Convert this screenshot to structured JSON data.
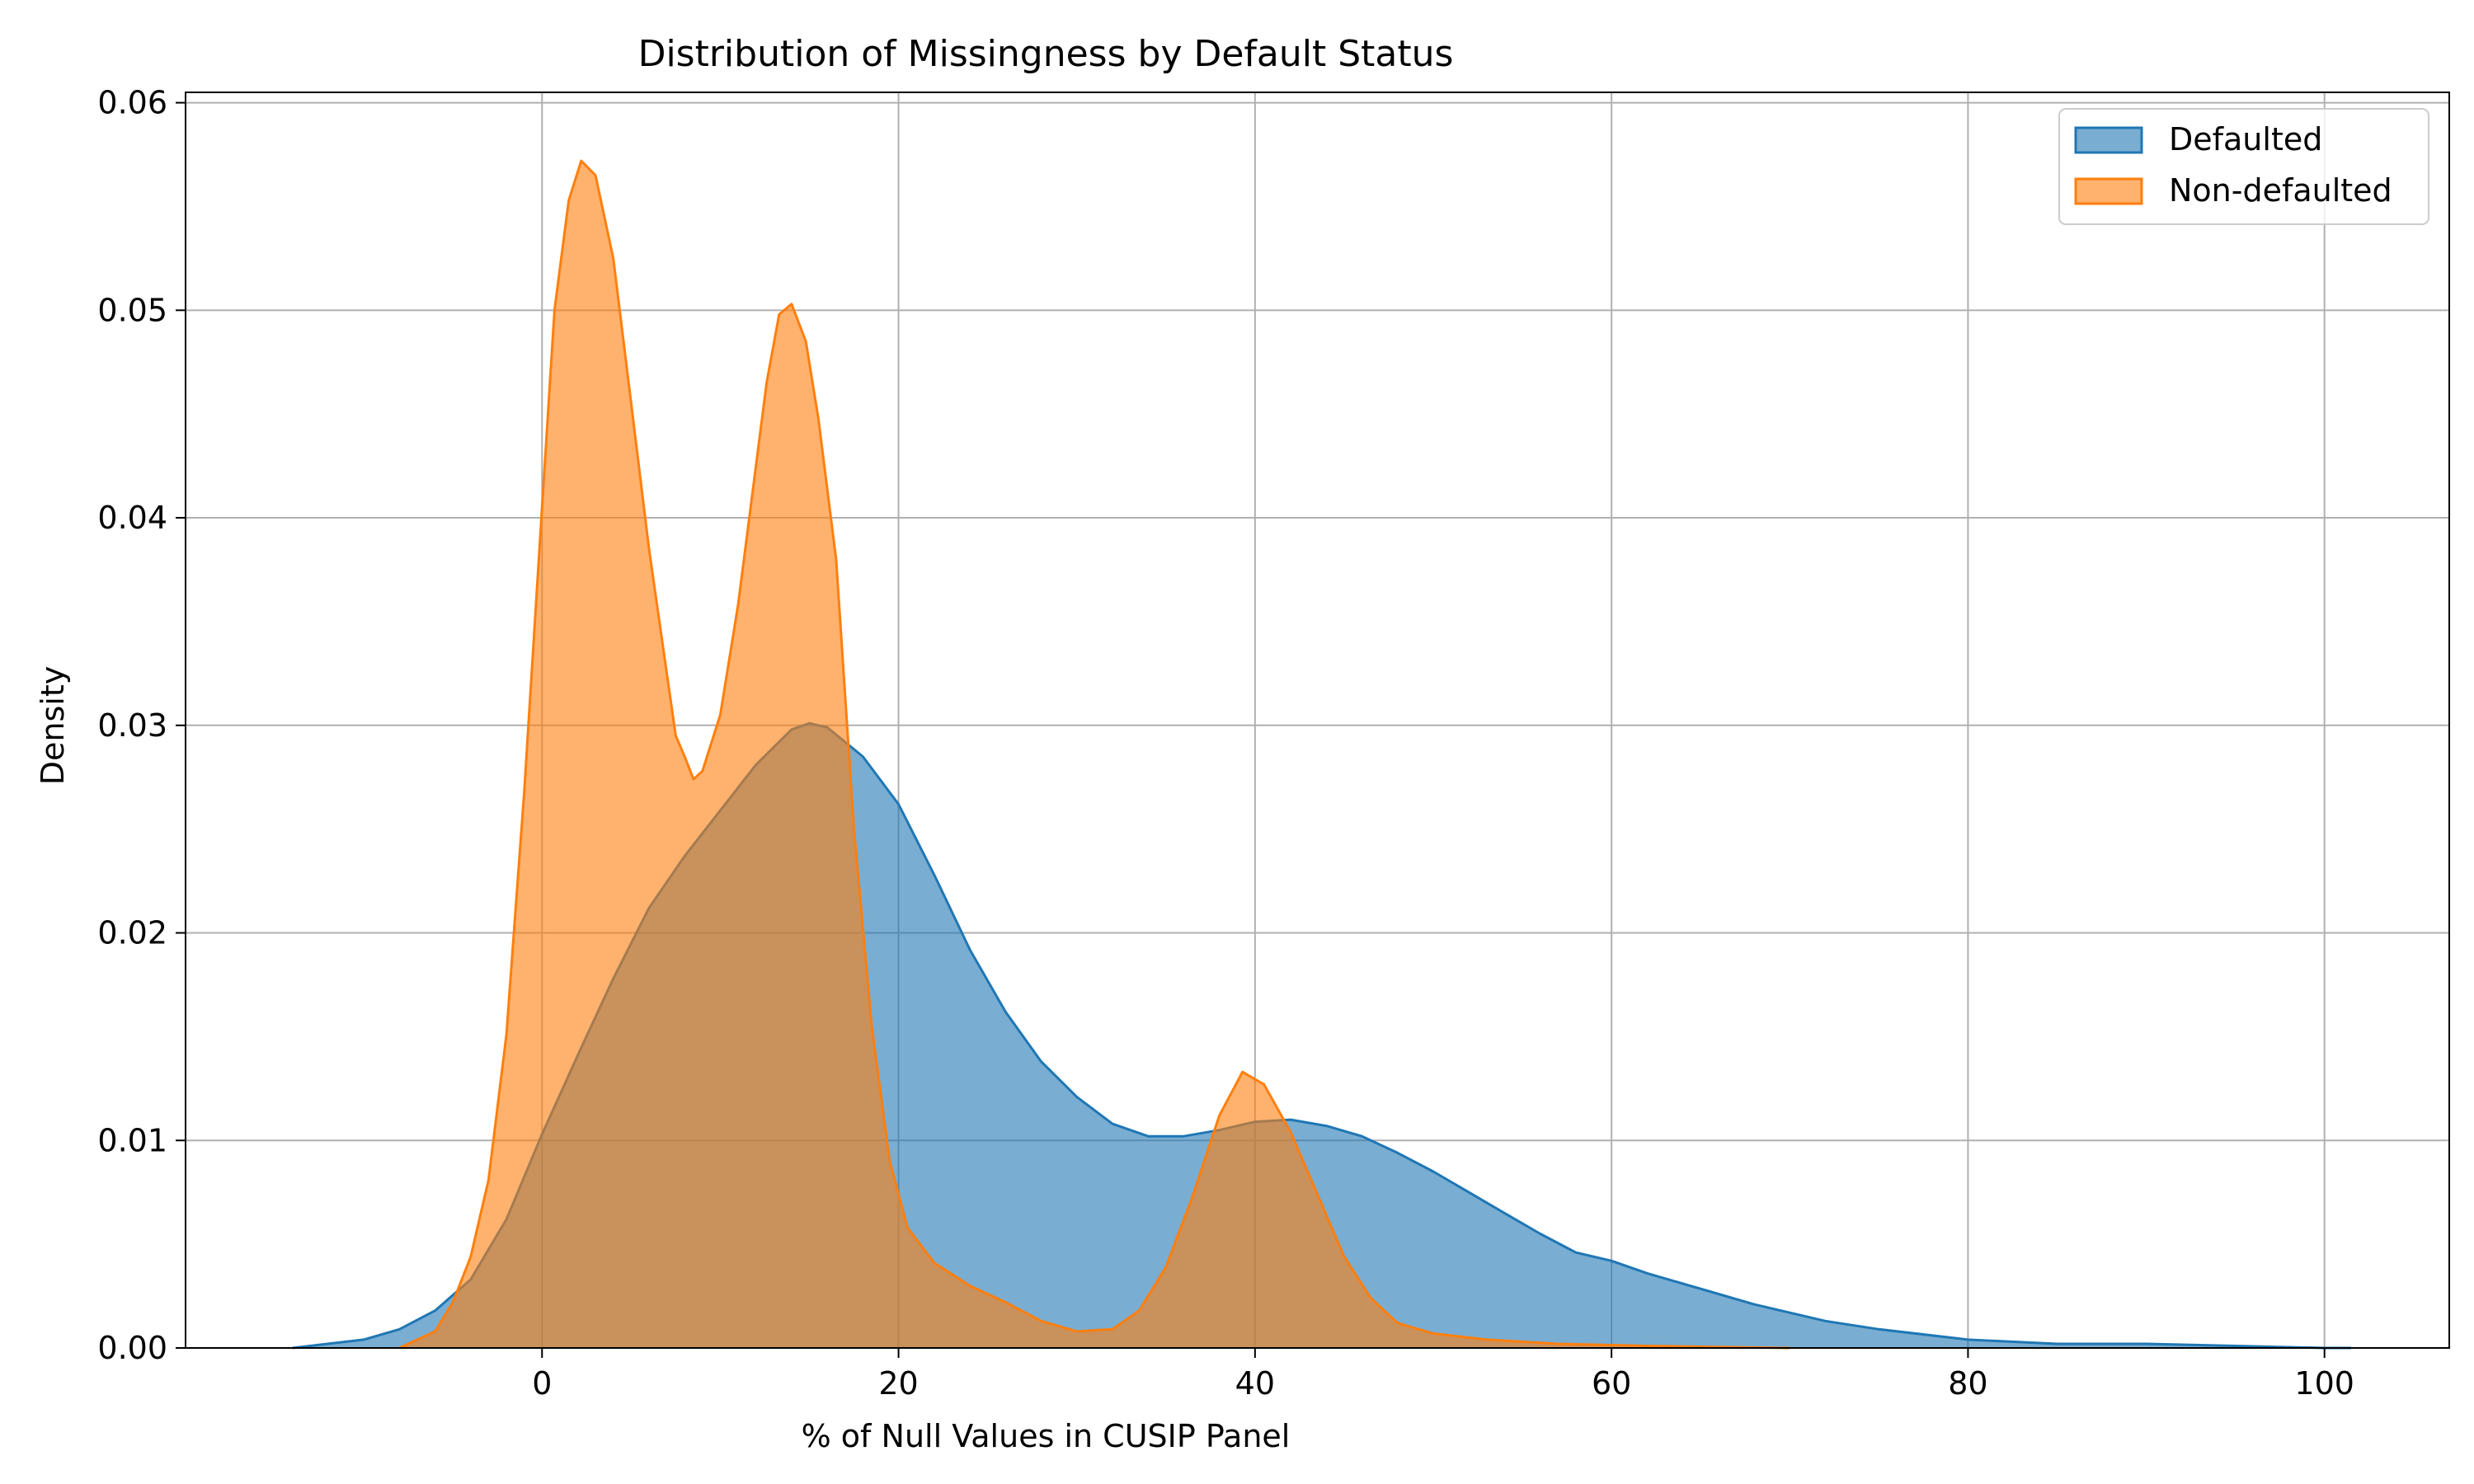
{
  "chart_data": {
    "type": "area",
    "title": "Distribution of Missingness by Default Status",
    "xlabel": "% of Null Values in CUSIP Panel",
    "ylabel": "Density",
    "xlim": [
      -20,
      107
    ],
    "ylim": [
      0,
      0.0605
    ],
    "xticks": [
      0,
      20,
      40,
      60,
      80,
      100
    ],
    "xtick_labels": [
      "0",
      "20",
      "40",
      "60",
      "80",
      "100"
    ],
    "yticks": [
      0.0,
      0.01,
      0.02,
      0.03,
      0.04,
      0.05,
      0.06
    ],
    "ytick_labels": [
      "0.00",
      "0.01",
      "0.02",
      "0.03",
      "0.04",
      "0.05",
      "0.06"
    ],
    "grid": true,
    "legend_position": "top-right",
    "series": [
      {
        "name": "Defaulted",
        "fill_color": "#1f77b4",
        "line_color": "#1f77b4",
        "x": [
          -14,
          -10,
          -8,
          -6,
          -4,
          -2,
          0,
          2,
          4,
          6,
          8,
          10,
          12,
          14,
          15,
          16,
          18,
          20,
          22,
          24,
          26,
          28,
          30,
          32,
          34,
          36,
          38,
          40,
          42,
          44,
          46,
          48,
          50,
          52,
          54,
          56,
          58,
          60,
          62,
          64,
          66,
          68,
          70,
          72,
          75,
          80,
          85,
          90,
          95,
          100,
          101.5
        ],
        "values": [
          0.0,
          0.0004,
          0.0009,
          0.0018,
          0.0033,
          0.0062,
          0.0103,
          0.0141,
          0.0178,
          0.0212,
          0.0237,
          0.0259,
          0.0281,
          0.0298,
          0.0301,
          0.0299,
          0.0285,
          0.0262,
          0.0228,
          0.0192,
          0.0162,
          0.0138,
          0.0121,
          0.0108,
          0.0102,
          0.0102,
          0.0105,
          0.0109,
          0.011,
          0.0107,
          0.0102,
          0.0094,
          0.0085,
          0.0075,
          0.0065,
          0.0055,
          0.0046,
          0.0042,
          0.0036,
          0.0031,
          0.0026,
          0.0021,
          0.0017,
          0.0013,
          0.0009,
          0.0004,
          0.0002,
          0.0002,
          0.0001,
          0.0,
          0.0
        ]
      },
      {
        "name": "Non-defaulted",
        "fill_color": "#ff7f0e",
        "line_color": "#ff7f0e",
        "x": [
          -8,
          -6,
          -5,
          -4,
          -3,
          -2,
          -1,
          0,
          0.7,
          1.5,
          2.2,
          3,
          4,
          5,
          6,
          7,
          7.5,
          8,
          8.5,
          9,
          10,
          11,
          12,
          12.6,
          13.3,
          14,
          14.8,
          15.5,
          16.5,
          17.5,
          18.5,
          19.5,
          20.5,
          22,
          24,
          26,
          28,
          30,
          32,
          33.5,
          35,
          36.5,
          38,
          39.3,
          40.5,
          42,
          43.5,
          45,
          46.5,
          48,
          50,
          53,
          57,
          62,
          70
        ],
        "values": [
          0.0,
          0.0008,
          0.0022,
          0.0044,
          0.0081,
          0.0151,
          0.0268,
          0.0405,
          0.05,
          0.0553,
          0.0572,
          0.0565,
          0.0525,
          0.0455,
          0.0385,
          0.0325,
          0.0295,
          0.0285,
          0.0274,
          0.0278,
          0.0305,
          0.0358,
          0.0425,
          0.0465,
          0.0498,
          0.0503,
          0.0485,
          0.0448,
          0.038,
          0.025,
          0.0155,
          0.009,
          0.0058,
          0.0041,
          0.003,
          0.0022,
          0.0013,
          0.0008,
          0.0009,
          0.0018,
          0.0039,
          0.0073,
          0.0112,
          0.0133,
          0.0127,
          0.0104,
          0.0074,
          0.0044,
          0.0024,
          0.0012,
          0.0007,
          0.0004,
          0.0002,
          0.0001,
          0.0
        ]
      }
    ]
  }
}
